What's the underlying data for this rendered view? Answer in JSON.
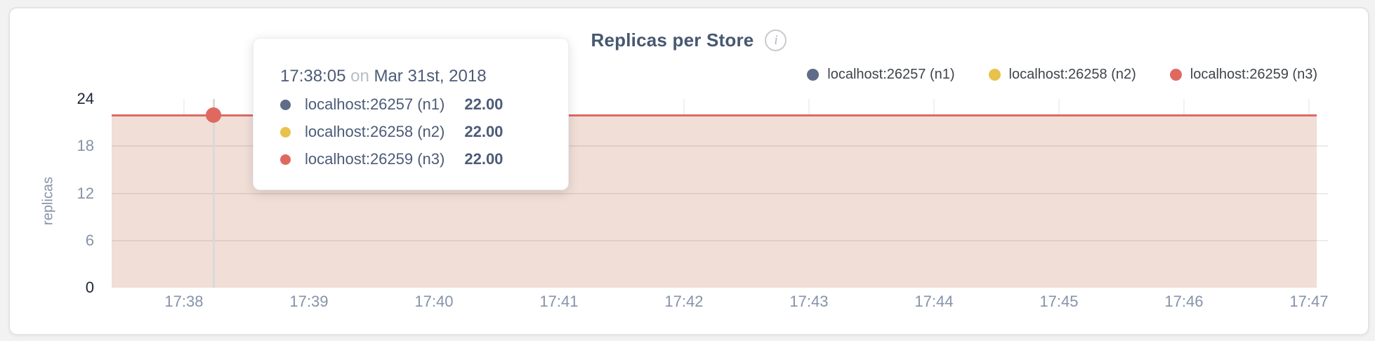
{
  "page": {
    "background": "#f2f2f3"
  },
  "panel": {
    "background": "#ffffff",
    "border_color": "#e4e4e5"
  },
  "header": {
    "title": "Replicas per Store",
    "info_icon_glyph": "i"
  },
  "legend": {
    "items": [
      {
        "label": "localhost:26257 (n1)",
        "color": "#5f6c87"
      },
      {
        "label": "localhost:26258 (n2)",
        "color": "#e8c24d"
      },
      {
        "label": "localhost:26259 (n3)",
        "color": "#e0695f"
      }
    ]
  },
  "tooltip": {
    "time": "17:38:05",
    "conjunction": "on",
    "date": "Mar 31st, 2018",
    "rows": [
      {
        "label": "localhost:26257 (n1)",
        "value": "22.00",
        "color": "#5f6c87"
      },
      {
        "label": "localhost:26258 (n2)",
        "value": "22.00",
        "color": "#e8c24d"
      },
      {
        "label": "localhost:26259 (n3)",
        "value": "22.00",
        "color": "#e0695f"
      }
    ]
  },
  "chart_data": {
    "type": "area",
    "title": "Replicas per Store",
    "xlabel": "",
    "ylabel": "replicas",
    "x_ticks": [
      "17:38",
      "17:39",
      "17:40",
      "17:41",
      "17:42",
      "17:43",
      "17:44",
      "17:45",
      "17:46",
      "17:47"
    ],
    "y_ticks": [
      0,
      6,
      12,
      18,
      24
    ],
    "ylim": [
      0,
      24
    ],
    "grid": true,
    "legend_position": "top-right",
    "series": [
      {
        "name": "localhost:26257 (n1)",
        "color": "#5f6c87",
        "values": [
          22,
          22,
          22,
          22,
          22,
          22,
          22,
          22,
          22,
          22
        ]
      },
      {
        "name": "localhost:26258 (n2)",
        "color": "#e8c24d",
        "values": [
          22,
          22,
          22,
          22,
          22,
          22,
          22,
          22,
          22,
          22
        ]
      },
      {
        "name": "localhost:26259 (n3)",
        "color": "#e0695f",
        "values": [
          22,
          22,
          22,
          22,
          22,
          22,
          22,
          22,
          22,
          22
        ]
      }
    ],
    "hover_point": {
      "time": "17:38:05",
      "date": "Mar 31st, 2018",
      "value": 22
    },
    "style": {
      "line_color": "#dd6b64",
      "fill_color": "#f0ded7",
      "dot_color": "#e0695f",
      "gridline_color": "rgba(90,60,40,0.10)",
      "guideline_color": "#d9d9d9",
      "tick_color": "#8593a9",
      "tick_extreme_color": "#1c2536"
    },
    "layout_hints": {
      "x_start_fraction": 0.06,
      "x_step_fraction": 0.10373,
      "hover_x_fraction": 0.0845
    }
  }
}
